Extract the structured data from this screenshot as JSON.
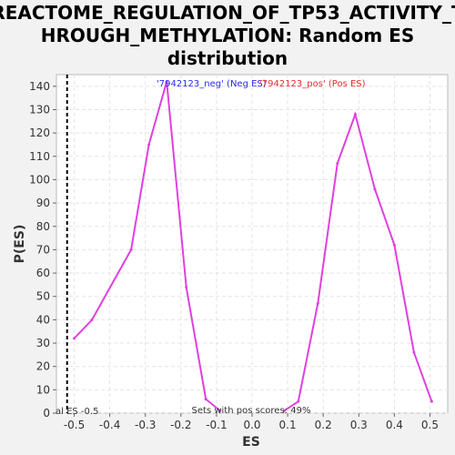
{
  "chart_data": {
    "type": "line",
    "title_lines": [
      "REACTOME_REGULATION_OF_TP53_ACTIVITY_T",
      "HROUGH_METHYLATION: Random ES",
      "distribution"
    ],
    "xlabel": "ES",
    "ylabel": "P(ES)",
    "xlim": [
      -0.55,
      0.55
    ],
    "ylim": [
      0,
      145
    ],
    "x_ticks": [
      "-0.5",
      "-0.4",
      "-0.3",
      "-0.2",
      "-0.1",
      "0.0",
      "0.1",
      "0.2",
      "0.3",
      "0.4",
      "0.5"
    ],
    "y_ticks": [
      "0",
      "10",
      "20",
      "30",
      "40",
      "50",
      "60",
      "70",
      "80",
      "90",
      "100",
      "110",
      "120",
      "130",
      "140"
    ],
    "grid": true,
    "series": [
      {
        "name": "'7942123_neg' (Neg ES)",
        "color": "#e040e0",
        "x": [
          -0.5,
          -0.45,
          -0.34,
          -0.29,
          -0.24,
          -0.185,
          -0.13,
          -0.09
        ],
        "y": [
          32,
          40,
          70,
          115,
          142,
          54,
          6,
          1
        ]
      },
      {
        "name": "'7942123_pos' (Pos ES)",
        "color": "#e040e0",
        "x": [
          0.09,
          0.13,
          0.185,
          0.24,
          0.29,
          0.345,
          0.4,
          0.455,
          0.505
        ],
        "y": [
          1,
          5,
          47,
          107,
          128,
          96,
          72,
          26,
          5
        ]
      }
    ],
    "legend": [
      {
        "text": "'7942123_neg' (Neg ES)",
        "color": "#2a2aee"
      },
      {
        "text": "'7942123_pos' (Pos ES)",
        "color": "#ee2a2a"
      }
    ],
    "actual_es": {
      "value": -0.52,
      "label": "al ES -0.5"
    },
    "annotation": "Sets with pos scores: 49%"
  }
}
